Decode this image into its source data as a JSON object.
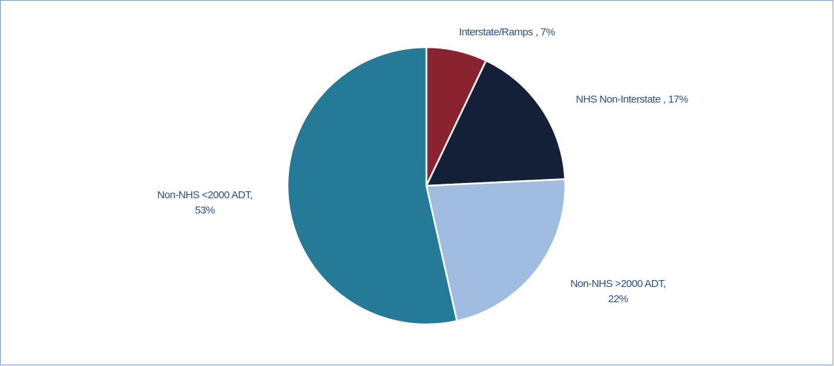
{
  "chart_data": {
    "type": "pie",
    "categories": [
      "Interstate/Ramps",
      "NHS Non-Interstate",
      "Non-NHS >2000 ADT",
      "Non-NHS <2000 ADT"
    ],
    "values": [
      7,
      17,
      22,
      53
    ],
    "value_labels": [
      "7%",
      "17%",
      "22%",
      "53%"
    ],
    "colors": [
      "#8B2230",
      "#141F38",
      "#A0BCE0",
      "#257A98"
    ]
  }
}
